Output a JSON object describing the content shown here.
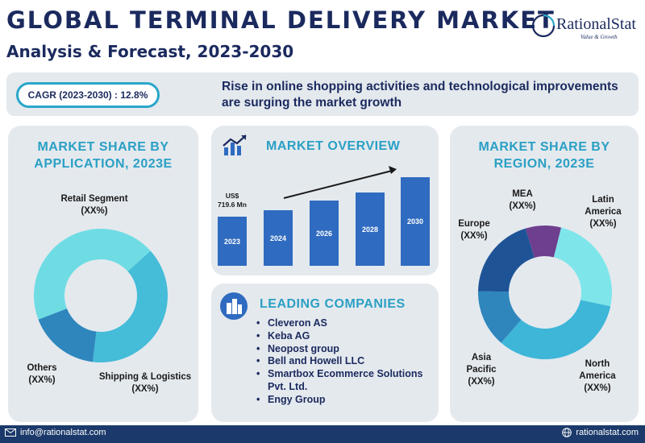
{
  "header": {
    "title": "GLOBAL TERMINAL DELIVERY MARKET",
    "subtitle": "Analysis & Forecast, 2023-2030"
  },
  "logo": {
    "name": "RationalStat",
    "tagline": "Value & Growth"
  },
  "banner": {
    "cagr": "CAGR (2023-2030) : 12.8%",
    "text": "Rise in online shopping activities and technological improvements are surging the market growth"
  },
  "application": {
    "heading_line1": "MARKET SHARE BY",
    "heading_line2": "APPLICATION, 2023E",
    "segments": [
      {
        "name": "Retail Segment",
        "value": "(XX%)",
        "color": "#6fdce4"
      },
      {
        "name": "Shipping & Logistics",
        "value": "(XX%)",
        "color": "#45bcd8"
      },
      {
        "name": "Others",
        "value": "(XX%)",
        "color": "#2e86bd"
      }
    ]
  },
  "overview": {
    "heading": "MARKET OVERVIEW",
    "value_label": "US$",
    "value": "719.6 Mn",
    "bars": [
      {
        "year": "2023",
        "level": 0.55
      },
      {
        "year": "2024",
        "level": 0.63
      },
      {
        "year": "2026",
        "level": 0.74
      },
      {
        "year": "2028",
        "level": 0.83
      },
      {
        "year": "2030",
        "level": 1.0
      }
    ],
    "bar_color": "#2f6bc0"
  },
  "companies": {
    "heading": "LEADING COMPANIES",
    "items": [
      "Cleveron AS",
      "Keba AG",
      "Neopost group",
      "Bell and Howell LLC",
      "Smartbox Ecommerce Solutions Pvt. Ltd.",
      "Engy Group"
    ]
  },
  "region": {
    "heading_line1": "MARKET SHARE BY",
    "heading_line2": "REGION, 2023E",
    "segments": [
      {
        "name_line1": "MEA",
        "name_line2": "",
        "value": "(XX%)",
        "color": "#6e3f8e"
      },
      {
        "name_line1": "Latin",
        "name_line2": "America",
        "value": "(XX%)",
        "color": "#7ee6ea"
      },
      {
        "name_line1": "North",
        "name_line2": "America",
        "value": "(XX%)",
        "color": "#3eb6d8"
      },
      {
        "name_line1": "Asia",
        "name_line2": "Pacific",
        "value": "(XX%)",
        "color": "#2e86bd"
      },
      {
        "name_line1": "Europe",
        "name_line2": "",
        "value": "(XX%)",
        "color": "#1e5496"
      }
    ]
  },
  "footer": {
    "email": "info@rationalstat.com",
    "website": "rationalstat.com"
  }
}
